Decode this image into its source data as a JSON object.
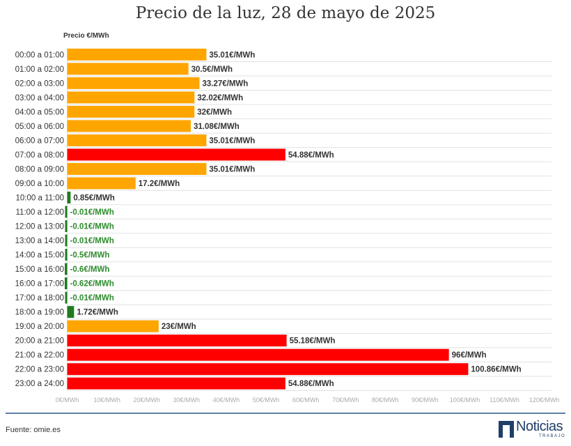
{
  "chart_data": {
    "type": "bar",
    "orientation": "horizontal",
    "title": "Precio de la luz, 28 de mayo de 2025",
    "ylabel": "Precio €/MWh",
    "xlim": [
      0,
      120
    ],
    "x_ticks": [
      0,
      10,
      20,
      30,
      40,
      50,
      60,
      70,
      80,
      90,
      100,
      110,
      120
    ],
    "x_tick_labels": [
      "0€/MWh",
      "10€/MWh",
      "20€/MWh",
      "30€/MWh",
      "40€/MWh",
      "50€/MWh",
      "60€/MWh",
      "70€/MWh",
      "80€/MWh",
      "90€/MWh",
      "100€/MWh",
      "110€/MWh",
      "120€/MWh"
    ],
    "grid": true,
    "categories": [
      "00:00 a 01:00",
      "01:00 a 02:00",
      "02:00 a 03:00",
      "03:00 a 04:00",
      "04:00 a 05:00",
      "05:00 a 06:00",
      "06:00 a 07:00",
      "07:00 a 08:00",
      "08:00 a 09:00",
      "09:00 a 10:00",
      "10:00 a 11:00",
      "11:00 a 12:00",
      "12:00 a 13:00",
      "13:00 a 14:00",
      "14:00 a 15:00",
      "15:00 a 16:00",
      "16:00 a 17:00",
      "17:00 a 18:00",
      "18:00 a 19:00",
      "19:00 a 20:00",
      "20:00 a 21:00",
      "21:00 a 22:00",
      "22:00 a 23:00",
      "23:00 a 24:00"
    ],
    "values": [
      35.01,
      30.5,
      33.27,
      32.02,
      32,
      31.08,
      35.01,
      54.88,
      35.01,
      17.2,
      0.85,
      -0.01,
      -0.01,
      -0.01,
      -0.5,
      -0.6,
      -0.62,
      -0.01,
      1.72,
      23,
      55.18,
      96,
      100.86,
      54.88
    ],
    "value_labels": [
      "35.01€/MWh",
      "30.5€/MWh",
      "33.27€/MWh",
      "32.02€/MWh",
      "32€/MWh",
      "31.08€/MWh",
      "35.01€/MWh",
      "54.88€/MWh",
      "35.01€/MWh",
      "17.2€/MWh",
      "0.85€/MWh",
      "-0.01€/MWh",
      "-0.01€/MWh",
      "-0.01€/MWh",
      "-0.5€/MWh",
      "-0.6€/MWh",
      "-0.62€/MWh",
      "-0.01€/MWh",
      "1.72€/MWh",
      "23€/MWh",
      "55.18€/MWh",
      "96€/MWh",
      "100.86€/MWh",
      "54.88€/MWh"
    ],
    "tiers": [
      "medio",
      "medio",
      "medio",
      "medio",
      "medio",
      "medio",
      "medio",
      "alto",
      "medio",
      "medio",
      "bajo",
      "bajo",
      "bajo",
      "bajo",
      "bajo",
      "bajo",
      "bajo",
      "bajo",
      "bajo",
      "medio",
      "alto",
      "alto",
      "alto",
      "alto"
    ],
    "tier_colors": {
      "bajo": "#1e7b1e",
      "medio": "#ffa500",
      "alto": "#ff0000"
    }
  },
  "footer": {
    "source": "Fuente: omie.es",
    "logo_name": "Noticias",
    "logo_sub": "TRABAJO"
  }
}
